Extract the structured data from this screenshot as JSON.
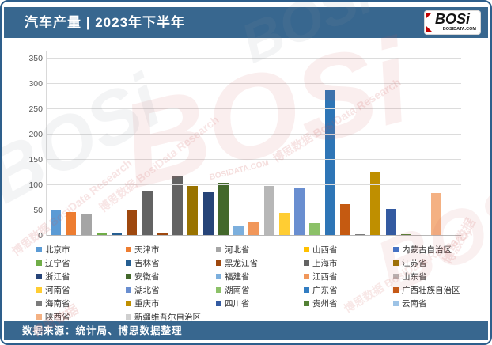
{
  "header": {
    "title": "汽车产量 | 2023年下半年",
    "logo_text": "BOSi",
    "logo_subtext": "BOSIDATA.COM"
  },
  "footer": {
    "source_text": "数据来源：统计局、博思数据整理"
  },
  "watermark": {
    "cn": "博思数据",
    "en": "BosiData Research",
    "logo": "BOSi",
    "site": "BOSIDATA.COM"
  },
  "chart_data": {
    "type": "bar",
    "title": "汽车产量 | 2023年下半年",
    "xlabel": "",
    "ylabel": "",
    "ylim": [
      0,
      350
    ],
    "ytick_interval": 50,
    "yticks": [
      0,
      50,
      100,
      150,
      200,
      250,
      300,
      350
    ],
    "grid": true,
    "legend_position": "bottom",
    "categories": [
      "北京市",
      "天津市",
      "河北省",
      "山西省",
      "内蒙古自治区",
      "辽宁省",
      "吉林省",
      "黑龙江省",
      "上海市",
      "江苏省",
      "浙江省",
      "安徽省",
      "福建省",
      "江西省",
      "山东省",
      "河南省",
      "湖北省",
      "湖南省",
      "广东省",
      "广西壮族自治区",
      "海南省",
      "重庆市",
      "四川省",
      "贵州省",
      "云南省",
      "陕西省",
      "新疆维吾尔自治区"
    ],
    "values": [
      52,
      47,
      44,
      4,
      4,
      50,
      88,
      6,
      118,
      99,
      86,
      105,
      20,
      27,
      98,
      45,
      93,
      25,
      287,
      62,
      3,
      126,
      53,
      3,
      2,
      85,
      2
    ],
    "legend_colors": [
      "#5B9BD5",
      "#ED7D31",
      "#A5A5A5",
      "#FFC000",
      "#4472C4",
      "#70AD47",
      "#255E91",
      "#9E480E",
      "#636363",
      "#997300",
      "#264478",
      "#43682B",
      "#7CAFDD",
      "#F1975A",
      "#B7B7B7",
      "#FFCD33",
      "#698ED0",
      "#8CC168",
      "#327DC2",
      "#C55A11",
      "#7B7B7B",
      "#BF8F00",
      "#335AA1",
      "#538135",
      "#9DC3E6",
      "#F4B183",
      "#CFCFCF"
    ],
    "bar_colors": [
      "#5B9BD5",
      "#ED7D31",
      "#A5A5A5",
      "#70AD47",
      "#255E91",
      "#9E480E",
      "#636363",
      "#9E480E",
      "#636363",
      "#997300",
      "#264478",
      "#43682B",
      "#7CAFDD",
      "#F1975A",
      "#B7B7B7",
      "#FFCD33",
      "#698ED0",
      "#8CC168",
      "#2E75B6",
      "#C55A11",
      "#7B7B7B",
      "#BF8F00",
      "#335AA1",
      "#538135",
      "#9DC3E6",
      "#F4B183",
      "#CFCFCF"
    ]
  },
  "accent_colors": {
    "header_bg": "#38678f",
    "border": "#2e5f8c",
    "gridline": "#dcdcdc",
    "logo_red": "#c00000"
  }
}
